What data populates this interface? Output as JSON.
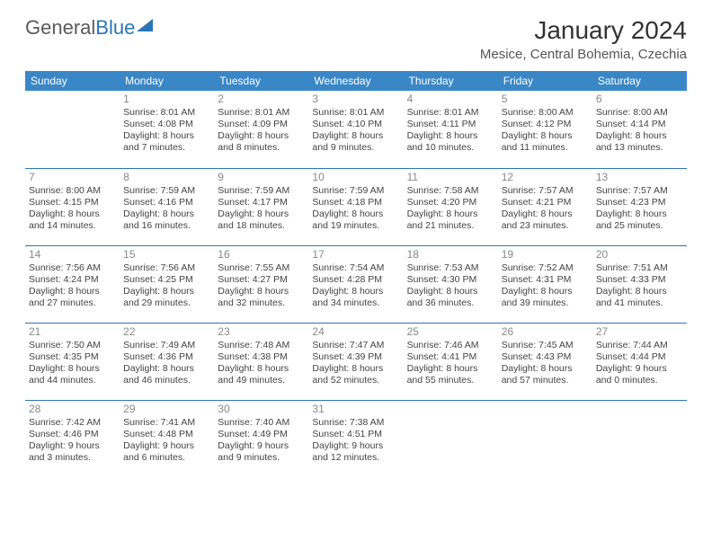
{
  "logo": {
    "text1": "General",
    "text2": "Blue"
  },
  "title": "January 2024",
  "location": "Mesice, Central Bohemia, Czechia",
  "colors": {
    "header_bg": "#3a87c7",
    "border": "#2b74b8",
    "logo_blue": "#2b74b8",
    "text": "#333333",
    "daynum": "#888888"
  },
  "weekdays": [
    "Sunday",
    "Monday",
    "Tuesday",
    "Wednesday",
    "Thursday",
    "Friday",
    "Saturday"
  ],
  "weeks": [
    [
      null,
      {
        "n": "1",
        "sr": "Sunrise: 8:01 AM",
        "ss": "Sunset: 4:08 PM",
        "dl": "Daylight: 8 hours and 7 minutes."
      },
      {
        "n": "2",
        "sr": "Sunrise: 8:01 AM",
        "ss": "Sunset: 4:09 PM",
        "dl": "Daylight: 8 hours and 8 minutes."
      },
      {
        "n": "3",
        "sr": "Sunrise: 8:01 AM",
        "ss": "Sunset: 4:10 PM",
        "dl": "Daylight: 8 hours and 9 minutes."
      },
      {
        "n": "4",
        "sr": "Sunrise: 8:01 AM",
        "ss": "Sunset: 4:11 PM",
        "dl": "Daylight: 8 hours and 10 minutes."
      },
      {
        "n": "5",
        "sr": "Sunrise: 8:00 AM",
        "ss": "Sunset: 4:12 PM",
        "dl": "Daylight: 8 hours and 11 minutes."
      },
      {
        "n": "6",
        "sr": "Sunrise: 8:00 AM",
        "ss": "Sunset: 4:14 PM",
        "dl": "Daylight: 8 hours and 13 minutes."
      }
    ],
    [
      {
        "n": "7",
        "sr": "Sunrise: 8:00 AM",
        "ss": "Sunset: 4:15 PM",
        "dl": "Daylight: 8 hours and 14 minutes."
      },
      {
        "n": "8",
        "sr": "Sunrise: 7:59 AM",
        "ss": "Sunset: 4:16 PM",
        "dl": "Daylight: 8 hours and 16 minutes."
      },
      {
        "n": "9",
        "sr": "Sunrise: 7:59 AM",
        "ss": "Sunset: 4:17 PM",
        "dl": "Daylight: 8 hours and 18 minutes."
      },
      {
        "n": "10",
        "sr": "Sunrise: 7:59 AM",
        "ss": "Sunset: 4:18 PM",
        "dl": "Daylight: 8 hours and 19 minutes."
      },
      {
        "n": "11",
        "sr": "Sunrise: 7:58 AM",
        "ss": "Sunset: 4:20 PM",
        "dl": "Daylight: 8 hours and 21 minutes."
      },
      {
        "n": "12",
        "sr": "Sunrise: 7:57 AM",
        "ss": "Sunset: 4:21 PM",
        "dl": "Daylight: 8 hours and 23 minutes."
      },
      {
        "n": "13",
        "sr": "Sunrise: 7:57 AM",
        "ss": "Sunset: 4:23 PM",
        "dl": "Daylight: 8 hours and 25 minutes."
      }
    ],
    [
      {
        "n": "14",
        "sr": "Sunrise: 7:56 AM",
        "ss": "Sunset: 4:24 PM",
        "dl": "Daylight: 8 hours and 27 minutes."
      },
      {
        "n": "15",
        "sr": "Sunrise: 7:56 AM",
        "ss": "Sunset: 4:25 PM",
        "dl": "Daylight: 8 hours and 29 minutes."
      },
      {
        "n": "16",
        "sr": "Sunrise: 7:55 AM",
        "ss": "Sunset: 4:27 PM",
        "dl": "Daylight: 8 hours and 32 minutes."
      },
      {
        "n": "17",
        "sr": "Sunrise: 7:54 AM",
        "ss": "Sunset: 4:28 PM",
        "dl": "Daylight: 8 hours and 34 minutes."
      },
      {
        "n": "18",
        "sr": "Sunrise: 7:53 AM",
        "ss": "Sunset: 4:30 PM",
        "dl": "Daylight: 8 hours and 36 minutes."
      },
      {
        "n": "19",
        "sr": "Sunrise: 7:52 AM",
        "ss": "Sunset: 4:31 PM",
        "dl": "Daylight: 8 hours and 39 minutes."
      },
      {
        "n": "20",
        "sr": "Sunrise: 7:51 AM",
        "ss": "Sunset: 4:33 PM",
        "dl": "Daylight: 8 hours and 41 minutes."
      }
    ],
    [
      {
        "n": "21",
        "sr": "Sunrise: 7:50 AM",
        "ss": "Sunset: 4:35 PM",
        "dl": "Daylight: 8 hours and 44 minutes."
      },
      {
        "n": "22",
        "sr": "Sunrise: 7:49 AM",
        "ss": "Sunset: 4:36 PM",
        "dl": "Daylight: 8 hours and 46 minutes."
      },
      {
        "n": "23",
        "sr": "Sunrise: 7:48 AM",
        "ss": "Sunset: 4:38 PM",
        "dl": "Daylight: 8 hours and 49 minutes."
      },
      {
        "n": "24",
        "sr": "Sunrise: 7:47 AM",
        "ss": "Sunset: 4:39 PM",
        "dl": "Daylight: 8 hours and 52 minutes."
      },
      {
        "n": "25",
        "sr": "Sunrise: 7:46 AM",
        "ss": "Sunset: 4:41 PM",
        "dl": "Daylight: 8 hours and 55 minutes."
      },
      {
        "n": "26",
        "sr": "Sunrise: 7:45 AM",
        "ss": "Sunset: 4:43 PM",
        "dl": "Daylight: 8 hours and 57 minutes."
      },
      {
        "n": "27",
        "sr": "Sunrise: 7:44 AM",
        "ss": "Sunset: 4:44 PM",
        "dl": "Daylight: 9 hours and 0 minutes."
      }
    ],
    [
      {
        "n": "28",
        "sr": "Sunrise: 7:42 AM",
        "ss": "Sunset: 4:46 PM",
        "dl": "Daylight: 9 hours and 3 minutes."
      },
      {
        "n": "29",
        "sr": "Sunrise: 7:41 AM",
        "ss": "Sunset: 4:48 PM",
        "dl": "Daylight: 9 hours and 6 minutes."
      },
      {
        "n": "30",
        "sr": "Sunrise: 7:40 AM",
        "ss": "Sunset: 4:49 PM",
        "dl": "Daylight: 9 hours and 9 minutes."
      },
      {
        "n": "31",
        "sr": "Sunrise: 7:38 AM",
        "ss": "Sunset: 4:51 PM",
        "dl": "Daylight: 9 hours and 12 minutes."
      },
      null,
      null,
      null
    ]
  ]
}
